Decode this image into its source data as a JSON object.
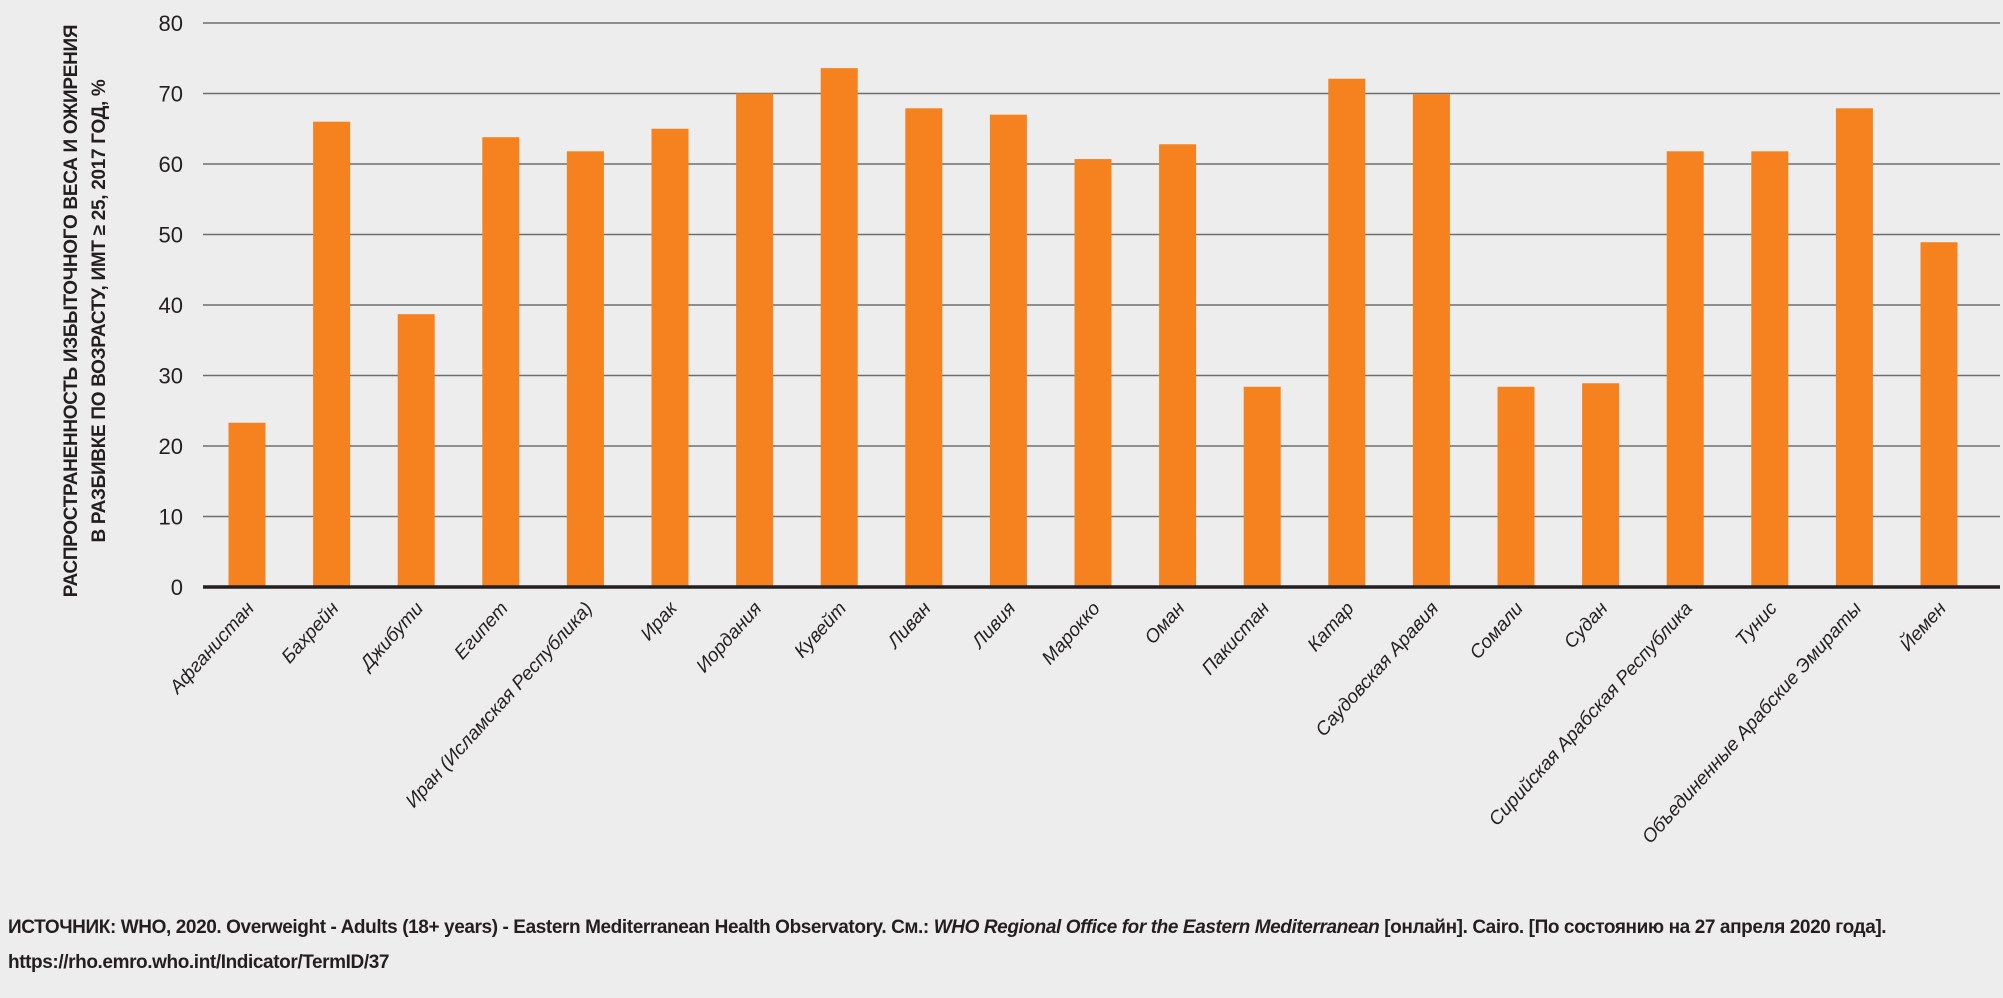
{
  "chart_data": {
    "type": "bar",
    "title": "",
    "xlabel": "",
    "ylabel_lines": [
      "РАСПРОСТРАНЕННОСТЬ ИЗБЫТОЧНОГО ВЕСА И ОЖИРЕНИЯ",
      "В РАЗБИВКЕ ПО ВОЗРАСТУ, ИМТ ≥ 25, 2017 ГОД, %"
    ],
    "ylim": [
      0,
      80
    ],
    "yticks": [
      0,
      10,
      20,
      30,
      40,
      50,
      60,
      70,
      80
    ],
    "grid": true,
    "legend": "none",
    "bar_color": "#f5821f",
    "categories": [
      "Афганистан",
      "Бахрейн",
      "Джибути",
      "Египет",
      "Иран (Исламская Республика)",
      "Ирак",
      "Иордания",
      "Кувейт",
      "Ливан",
      "Ливия",
      "Марокко",
      "Оман",
      "Пакистан",
      "Катар",
      "Саудовская Аравия",
      "Сомали",
      "Судан",
      "Сирийская Арабская Республика",
      "Тунис",
      "Объединенные Арабские Эмираты",
      "Йемен"
    ],
    "values": [
      23.3,
      66.0,
      38.7,
      63.8,
      61.8,
      65.0,
      70.0,
      73.6,
      67.9,
      67.0,
      60.7,
      62.8,
      28.4,
      72.1,
      69.9,
      28.4,
      28.9,
      61.8,
      61.8,
      67.9,
      48.9
    ]
  },
  "source": {
    "prefix": "ИСТОЧНИК: WHO, 2020. Overweight - Adults (18+ years) - Eastern Mediterranean Health Observatory. См.: ",
    "italic": "WHO Regional Office for the Eastern Mediterranean",
    "suffix": " [онлайн]. Cairo. [По состоянию на 27 апреля 2020 года]. https://rho.emro.who.int/Indicator/TermID/37"
  }
}
